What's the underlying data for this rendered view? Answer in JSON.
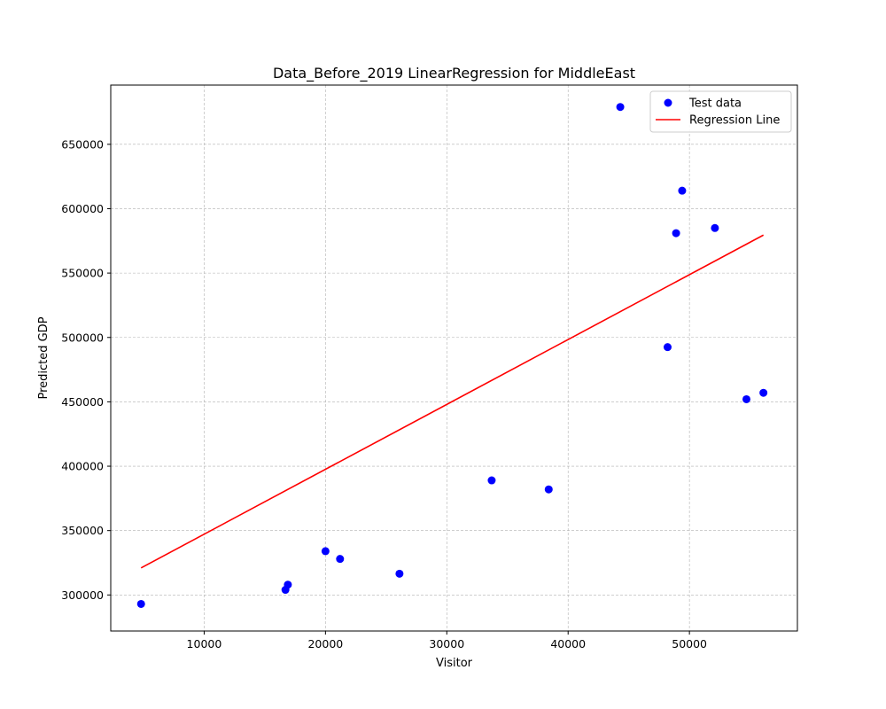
{
  "chart_data": {
    "type": "scatter",
    "title": "Data_Before_2019 LinearRegression for MiddleEast",
    "xlabel": "Visitor",
    "ylabel": "Predicted GDP",
    "xlim": [
      2300,
      58900
    ],
    "ylim": [
      272000,
      696000
    ],
    "x_ticks": [
      10000,
      20000,
      30000,
      40000,
      50000
    ],
    "y_ticks": [
      300000,
      350000,
      400000,
      450000,
      500000,
      550000,
      600000,
      650000
    ],
    "grid": true,
    "legend_position": "top-right",
    "series": [
      {
        "name": "Test data",
        "kind": "scatter",
        "color": "#0000ff",
        "points": [
          {
            "x": 4800,
            "y": 293000
          },
          {
            "x": 16700,
            "y": 304000
          },
          {
            "x": 16900,
            "y": 308000
          },
          {
            "x": 20000,
            "y": 334000
          },
          {
            "x": 21200,
            "y": 328000
          },
          {
            "x": 26100,
            "y": 316500
          },
          {
            "x": 33700,
            "y": 389000
          },
          {
            "x": 38400,
            "y": 382000
          },
          {
            "x": 44300,
            "y": 679000
          },
          {
            "x": 48200,
            "y": 492500
          },
          {
            "x": 48900,
            "y": 581000
          },
          {
            "x": 49400,
            "y": 614000
          },
          {
            "x": 52100,
            "y": 585000
          },
          {
            "x": 54700,
            "y": 452000
          },
          {
            "x": 56100,
            "y": 457000
          }
        ]
      },
      {
        "name": "Regression Line",
        "kind": "line",
        "color": "#ff0000",
        "points": [
          {
            "x": 4800,
            "y": 321000
          },
          {
            "x": 56100,
            "y": 579500
          }
        ]
      }
    ]
  }
}
